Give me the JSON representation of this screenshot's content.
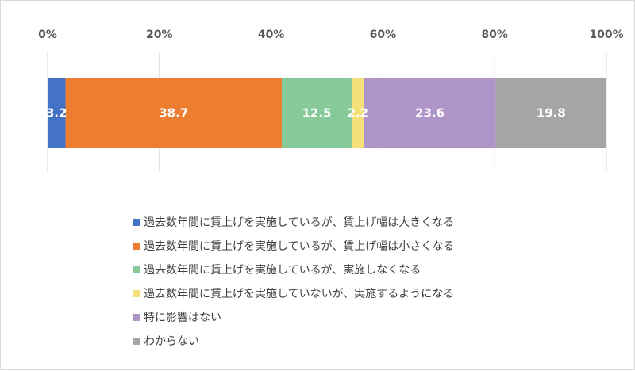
{
  "chart_data": {
    "type": "bar",
    "orientation": "horizontal",
    "stacked": true,
    "title": "",
    "xlabel": "",
    "ylabel": "",
    "xlim": [
      0,
      100
    ],
    "x_ticks": [
      "0%",
      "20%",
      "40%",
      "60%",
      "80%",
      "100%"
    ],
    "grid": true,
    "legend_position": "bottom",
    "series": [
      {
        "name": "過去数年間に賃上げを実施しているが、賃上げ幅は大きくなる",
        "value": 3.2,
        "label": "3.2",
        "color": "#4472c4"
      },
      {
        "name": "過去数年間に賃上げを実施しているが、賃上げ幅は小さくなる",
        "value": 38.7,
        "label": "38.7",
        "color": "#ed7d31"
      },
      {
        "name": "過去数年間に賃上げを実施しているが、実施しなくなる",
        "value": 12.5,
        "label": "12.5",
        "color": "#87c999"
      },
      {
        "name": "過去数年間に賃上げを実施していないが、実施するようになる",
        "value": 2.2,
        "label": "2.2",
        "color": "#f5e07a"
      },
      {
        "name": "特に影響はない",
        "value": 23.6,
        "label": "23.6",
        "color": "#b096c8"
      },
      {
        "name": "わからない",
        "value": 19.8,
        "label": "19.8",
        "color": "#a5a5a5"
      }
    ]
  }
}
